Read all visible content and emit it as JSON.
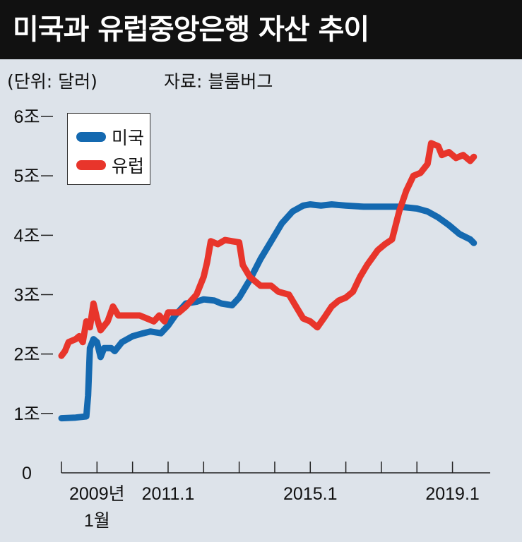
{
  "title": "미국과 유럽중앙은행 자산 추이",
  "unit_note": "(단위: 달러)",
  "source_note": "자료: 블룸버그",
  "colors": {
    "us": "#1469b0",
    "eu": "#e8352b",
    "background": "#dde3ea"
  },
  "chart_data": {
    "type": "line",
    "y_unit": "조 달러",
    "ylim": [
      0,
      6
    ],
    "y_ticks": [
      {
        "value": 6,
        "label": "6조"
      },
      {
        "value": 5,
        "label": "5조"
      },
      {
        "value": 4,
        "label": "4조"
      },
      {
        "value": 3,
        "label": "3조"
      },
      {
        "value": 2,
        "label": "2조"
      },
      {
        "value": 1,
        "label": "1조"
      },
      {
        "value": 0,
        "label": "0"
      }
    ],
    "x_range": [
      2008.0,
      2020.3
    ],
    "x_ticks": [
      2008,
      2009,
      2010,
      2011,
      2012,
      2013,
      2014,
      2015,
      2016,
      2017,
      2018,
      2019
    ],
    "x_labels": [
      {
        "value": 2009,
        "lines": [
          "2009년",
          "1월"
        ]
      },
      {
        "value": 2011,
        "lines": [
          "2011.1"
        ]
      },
      {
        "value": 2015,
        "lines": [
          "2015.1"
        ]
      },
      {
        "value": 2019,
        "lines": [
          "2019.1"
        ]
      }
    ],
    "grid": false,
    "legend_position": "top-left",
    "series": [
      {
        "name": "미국",
        "color": "#1469b0",
        "points": [
          [
            2008.0,
            0.92
          ],
          [
            2008.4,
            0.93
          ],
          [
            2008.7,
            0.95
          ],
          [
            2008.75,
            1.3
          ],
          [
            2008.8,
            2.1
          ],
          [
            2008.9,
            2.25
          ],
          [
            2009.0,
            2.2
          ],
          [
            2009.1,
            1.95
          ],
          [
            2009.2,
            2.1
          ],
          [
            2009.4,
            2.1
          ],
          [
            2009.5,
            2.05
          ],
          [
            2009.7,
            2.2
          ],
          [
            2010.0,
            2.3
          ],
          [
            2010.3,
            2.35
          ],
          [
            2010.5,
            2.38
          ],
          [
            2010.8,
            2.35
          ],
          [
            2011.0,
            2.48
          ],
          [
            2011.2,
            2.65
          ],
          [
            2011.5,
            2.85
          ],
          [
            2011.8,
            2.88
          ],
          [
            2012.0,
            2.92
          ],
          [
            2012.3,
            2.9
          ],
          [
            2012.5,
            2.85
          ],
          [
            2012.8,
            2.82
          ],
          [
            2013.0,
            2.95
          ],
          [
            2013.3,
            3.25
          ],
          [
            2013.6,
            3.6
          ],
          [
            2013.9,
            3.9
          ],
          [
            2014.2,
            4.2
          ],
          [
            2014.5,
            4.4
          ],
          [
            2014.8,
            4.5
          ],
          [
            2015.0,
            4.52
          ],
          [
            2015.3,
            4.5
          ],
          [
            2015.6,
            4.52
          ],
          [
            2016.0,
            4.5
          ],
          [
            2016.5,
            4.48
          ],
          [
            2017.0,
            4.48
          ],
          [
            2017.5,
            4.48
          ],
          [
            2018.0,
            4.45
          ],
          [
            2018.3,
            4.4
          ],
          [
            2018.6,
            4.3
          ],
          [
            2018.9,
            4.17
          ],
          [
            2019.2,
            4.02
          ],
          [
            2019.5,
            3.93
          ],
          [
            2019.6,
            3.87
          ]
        ]
      },
      {
        "name": "유럽",
        "color": "#e8352b",
        "points": [
          [
            2008.0,
            1.97
          ],
          [
            2008.1,
            2.05
          ],
          [
            2008.2,
            2.2
          ],
          [
            2008.4,
            2.25
          ],
          [
            2008.5,
            2.3
          ],
          [
            2008.6,
            2.2
          ],
          [
            2008.7,
            2.55
          ],
          [
            2008.8,
            2.45
          ],
          [
            2008.9,
            2.85
          ],
          [
            2009.0,
            2.6
          ],
          [
            2009.1,
            2.4
          ],
          [
            2009.3,
            2.55
          ],
          [
            2009.45,
            2.8
          ],
          [
            2009.6,
            2.65
          ],
          [
            2009.9,
            2.65
          ],
          [
            2010.2,
            2.65
          ],
          [
            2010.4,
            2.6
          ],
          [
            2010.6,
            2.55
          ],
          [
            2010.75,
            2.65
          ],
          [
            2010.9,
            2.55
          ],
          [
            2011.0,
            2.7
          ],
          [
            2011.3,
            2.7
          ],
          [
            2011.5,
            2.8
          ],
          [
            2011.8,
            3.0
          ],
          [
            2012.0,
            3.3
          ],
          [
            2012.1,
            3.55
          ],
          [
            2012.2,
            3.9
          ],
          [
            2012.4,
            3.85
          ],
          [
            2012.6,
            3.92
          ],
          [
            2012.8,
            3.9
          ],
          [
            2013.0,
            3.88
          ],
          [
            2013.1,
            3.5
          ],
          [
            2013.3,
            3.3
          ],
          [
            2013.6,
            3.15
          ],
          [
            2013.9,
            3.15
          ],
          [
            2014.1,
            3.05
          ],
          [
            2014.4,
            3.0
          ],
          [
            2014.6,
            2.8
          ],
          [
            2014.8,
            2.6
          ],
          [
            2015.0,
            2.55
          ],
          [
            2015.2,
            2.45
          ],
          [
            2015.4,
            2.62
          ],
          [
            2015.6,
            2.8
          ],
          [
            2015.8,
            2.9
          ],
          [
            2016.0,
            2.95
          ],
          [
            2016.2,
            3.05
          ],
          [
            2016.4,
            3.3
          ],
          [
            2016.6,
            3.5
          ],
          [
            2016.9,
            3.75
          ],
          [
            2017.1,
            3.85
          ],
          [
            2017.3,
            3.93
          ],
          [
            2017.5,
            4.4
          ],
          [
            2017.7,
            4.75
          ],
          [
            2017.9,
            5.0
          ],
          [
            2018.1,
            5.05
          ],
          [
            2018.3,
            5.2
          ],
          [
            2018.4,
            5.55
          ],
          [
            2018.6,
            5.5
          ],
          [
            2018.7,
            5.35
          ],
          [
            2018.9,
            5.4
          ],
          [
            2019.1,
            5.3
          ],
          [
            2019.3,
            5.35
          ],
          [
            2019.5,
            5.25
          ],
          [
            2019.6,
            5.32
          ]
        ]
      }
    ]
  }
}
